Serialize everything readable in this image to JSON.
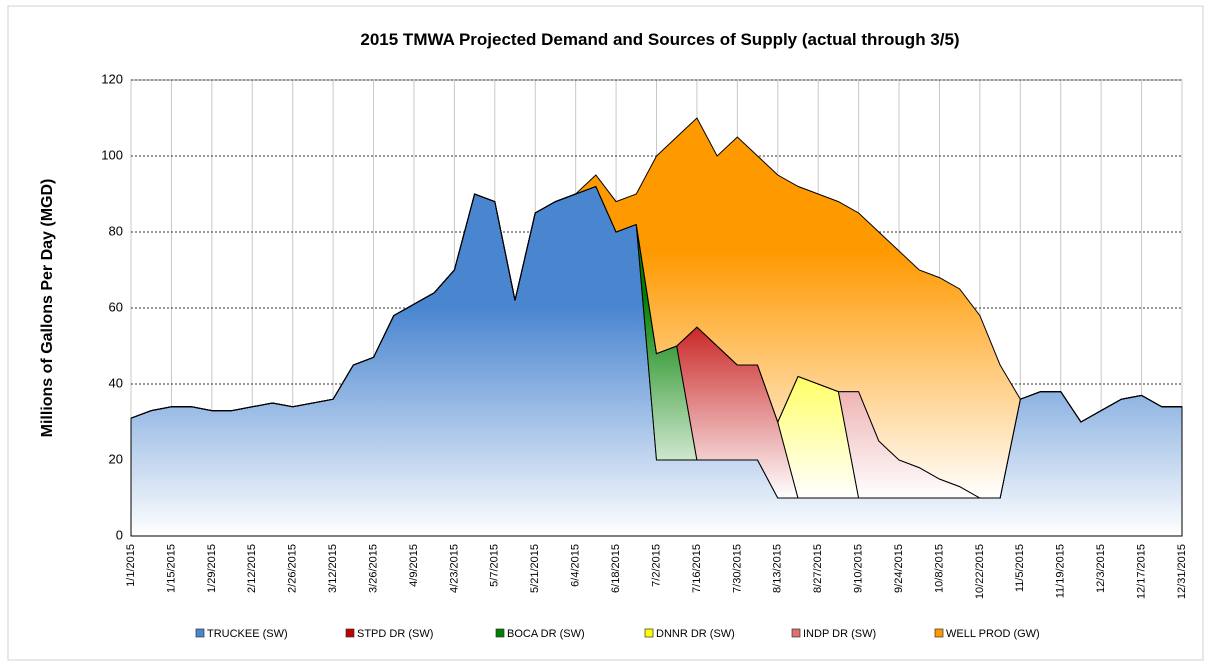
{
  "chart_data": {
    "type": "area",
    "title": "2015 TMWA Projected Demand and Sources of Supply (actual through 3/5)",
    "y_label": "Millions of Gallons Per Day (MGD)",
    "stacked": true,
    "x": [
      0,
      7,
      14,
      21,
      28,
      35,
      42,
      49,
      56,
      63,
      70,
      77,
      84,
      91,
      98,
      105,
      112,
      119,
      126,
      133,
      140,
      147,
      154,
      161,
      168,
      175,
      182,
      189,
      196,
      203,
      210,
      217,
      224,
      231,
      238,
      245,
      252,
      259,
      266,
      273,
      280,
      287,
      294,
      301,
      308,
      315,
      322,
      329,
      336,
      343,
      350,
      357,
      364
    ],
    "xlim": [
      0,
      364
    ],
    "xticks": [
      {
        "value": 0,
        "label": "1/1/2015"
      },
      {
        "value": 14,
        "label": "1/15/2015"
      },
      {
        "value": 28,
        "label": "1/29/2015"
      },
      {
        "value": 42,
        "label": "2/12/2015"
      },
      {
        "value": 56,
        "label": "2/26/2015"
      },
      {
        "value": 70,
        "label": "3/12/2015"
      },
      {
        "value": 84,
        "label": "3/26/2015"
      },
      {
        "value": 98,
        "label": "4/9/2015"
      },
      {
        "value": 112,
        "label": "4/23/2015"
      },
      {
        "value": 126,
        "label": "5/7/2015"
      },
      {
        "value": 140,
        "label": "5/21/2015"
      },
      {
        "value": 154,
        "label": "6/4/2015"
      },
      {
        "value": 168,
        "label": "6/18/2015"
      },
      {
        "value": 182,
        "label": "7/2/2015"
      },
      {
        "value": 196,
        "label": "7/16/2015"
      },
      {
        "value": 210,
        "label": "7/30/2015"
      },
      {
        "value": 224,
        "label": "8/13/2015"
      },
      {
        "value": 238,
        "label": "8/27/2015"
      },
      {
        "value": 252,
        "label": "9/10/2015"
      },
      {
        "value": 266,
        "label": "9/24/2015"
      },
      {
        "value": 280,
        "label": "10/8/2015"
      },
      {
        "value": 294,
        "label": "10/22/2015"
      },
      {
        "value": 308,
        "label": "11/5/2015"
      },
      {
        "value": 322,
        "label": "11/19/2015"
      },
      {
        "value": 336,
        "label": "12/3/2015"
      },
      {
        "value": 350,
        "label": "12/17/2015"
      },
      {
        "value": 364,
        "label": "12/31/2015"
      }
    ],
    "ylim": [
      0,
      120
    ],
    "yticks": [
      0,
      20,
      40,
      60,
      80,
      100,
      120
    ],
    "grid": true,
    "legend": "bottom",
    "series": [
      {
        "name": "TRUCKEE (SW)",
        "color": "#4a86d0",
        "values": [
          31,
          33,
          34,
          34,
          33,
          33,
          34,
          35,
          34,
          35,
          36,
          45,
          47,
          58,
          61,
          64,
          70,
          90,
          88,
          62,
          85,
          88,
          90,
          92,
          80,
          82,
          20,
          20,
          20,
          20,
          20,
          20,
          10,
          10,
          10,
          10,
          10,
          10,
          10,
          10,
          10,
          10,
          10,
          10,
          36,
          38,
          38,
          30,
          33,
          36,
          37,
          34,
          34
        ]
      },
      {
        "name": "STPD DR (SW)",
        "color": "#c00000",
        "values": [
          0,
          0,
          0,
          0,
          0,
          0,
          0,
          0,
          0,
          0,
          0,
          0,
          0,
          0,
          0,
          0,
          0,
          0,
          0,
          0,
          0,
          0,
          0,
          0,
          0,
          0,
          0,
          0,
          35,
          30,
          25,
          25,
          20,
          0,
          0,
          0,
          0,
          0,
          0,
          0,
          0,
          0,
          0,
          0,
          0,
          0,
          0,
          0,
          0,
          0,
          0,
          0,
          0
        ]
      },
      {
        "name": "BOCA DR (SW)",
        "color": "#008000",
        "values": [
          0,
          0,
          0,
          0,
          0,
          0,
          0,
          0,
          0,
          0,
          0,
          0,
          0,
          0,
          0,
          0,
          0,
          0,
          0,
          0,
          0,
          0,
          0,
          0,
          0,
          0,
          28,
          30,
          0,
          0,
          0,
          0,
          0,
          0,
          0,
          0,
          0,
          0,
          0,
          0,
          0,
          0,
          0,
          0,
          0,
          0,
          0,
          0,
          0,
          0,
          0,
          0,
          0
        ]
      },
      {
        "name": "DNNR DR (SW)",
        "color": "#ffff00",
        "values": [
          0,
          0,
          0,
          0,
          0,
          0,
          0,
          0,
          0,
          0,
          0,
          0,
          0,
          0,
          0,
          0,
          0,
          0,
          0,
          0,
          0,
          0,
          0,
          0,
          0,
          0,
          0,
          0,
          0,
          0,
          0,
          0,
          0,
          32,
          30,
          28,
          0,
          0,
          0,
          0,
          0,
          0,
          0,
          0,
          0,
          0,
          0,
          0,
          0,
          0,
          0,
          0,
          0
        ]
      },
      {
        "name": "INDP DR (SW)",
        "color": "#e07070",
        "values": [
          0,
          0,
          0,
          0,
          0,
          0,
          0,
          0,
          0,
          0,
          0,
          0,
          0,
          0,
          0,
          0,
          0,
          0,
          0,
          0,
          0,
          0,
          0,
          0,
          0,
          0,
          0,
          0,
          0,
          0,
          0,
          0,
          0,
          0,
          0,
          0,
          28,
          15,
          10,
          8,
          5,
          3,
          0,
          0,
          0,
          0,
          0,
          0,
          0,
          0,
          0,
          0,
          0
        ]
      },
      {
        "name": "WELL PROD (GW)",
        "color": "#ff9900",
        "values": [
          0,
          0,
          0,
          0,
          0,
          0,
          0,
          0,
          0,
          0,
          0,
          0,
          0,
          0,
          0,
          0,
          0,
          0,
          0,
          0,
          0,
          0,
          0,
          3,
          8,
          8,
          52,
          55,
          55,
          50,
          60,
          55,
          65,
          50,
          50,
          50,
          47,
          55,
          55,
          52,
          53,
          52,
          48,
          35,
          0,
          0,
          0,
          0,
          0,
          0,
          0,
          0,
          0
        ]
      }
    ]
  }
}
